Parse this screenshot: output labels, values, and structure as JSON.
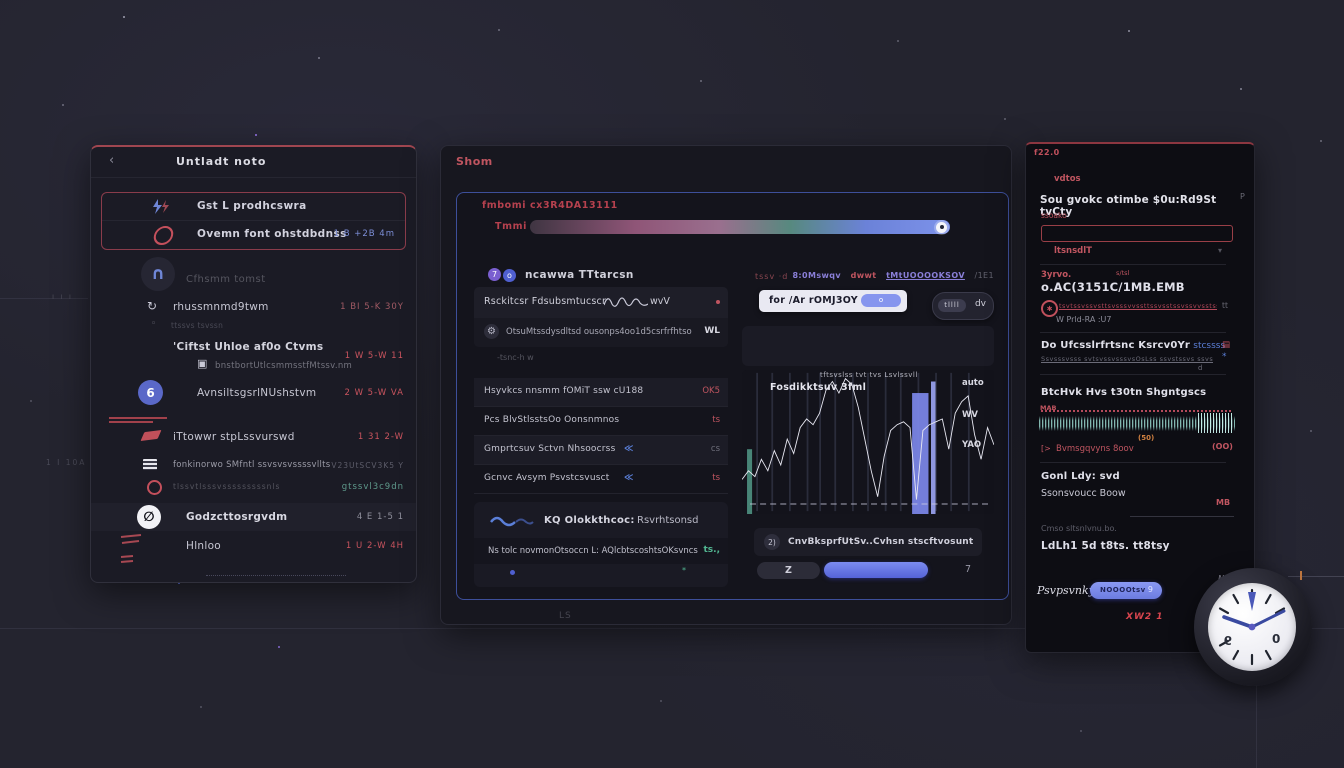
{
  "icons": {
    "back": "‹",
    "refresh": "↻",
    "headphones": "∩",
    "grid": "▣",
    "gear": "⚙",
    "slash": "∅",
    "chevron_down": "▾",
    "double_angle": "≪"
  },
  "left_panel": {
    "header": {
      "title": "Untladt noto"
    },
    "pinned": [
      {
        "label": "Gst L prodhcswra"
      },
      {
        "label": "Ovemn font ohstdbdnss",
        "time": "1 B +2B 4m"
      }
    ],
    "profile_label": "Cfhsmm tomst",
    "items": [
      {
        "label": "rhussmnmd9twm",
        "time": "1 BI 5-K 30Y"
      },
      {
        "label": "ttssvs tsvssn",
        "time": ""
      },
      {
        "label": "'Ciftst Uhloe af0o Ctvms",
        "sub": "bnstbortUtlcsmmsstfMtssv.nm",
        "time": "1 W 5-W 11"
      },
      {
        "label": "AvnsiltsgsrlNUshstvm",
        "time": "2 W 5-W VA",
        "badge": "6"
      },
      {
        "label": "iTtowwr stpLssvurswd",
        "time": "1 31 2-W"
      },
      {
        "label": "fonkinorwo SMfntl ssvsvsvssssvllts",
        "time": "V23UtSCV3K5 Y"
      },
      {
        "label": "tlssvtlsssvsssssssssnls",
        "time": "gtssvl3c9dn"
      },
      {
        "label": "Godzcttosrgvdm",
        "time": "4 E 1-5 1"
      },
      {
        "label": "Hlnloo",
        "time": "1 U 2-W 4H"
      }
    ]
  },
  "middle_panel": {
    "title": "Shom",
    "section_label": "fmbomi cx3R4DA13111",
    "slider_label": "Tmmi",
    "left": {
      "dot1": "7",
      "dot2": "o",
      "header": "ncawwa TTtarcsn",
      "card_row1": "Rsckitcsr Fdsubsmtucscr",
      "card_row1_suffix": "wvV",
      "card_row2": "OtsuMtssdysdltsd ousonps4oo1d5csrfrfhtso",
      "card_row2_value": "WL",
      "note": "-tsnc-h w",
      "rows": [
        {
          "label": "Hsyvkcs nnsmm fOMiT ssw cU188",
          "mid": "",
          "value": "OK5"
        },
        {
          "label": "Pcs BlvStlsstsOo Oonsnmnos",
          "mid": "",
          "value": "ts"
        },
        {
          "label": "Gmprtcsuv Sctvn Nhsoocrss",
          "mid": "≪",
          "value": "cs"
        },
        {
          "label": "Gcnvc Avsym Psvstcsvusct",
          "mid": "≪",
          "value": "ts"
        }
      ],
      "footer": {
        "brand": "KQ Olokkthcoc:",
        "brand_right": "Rsvrhtsonsd",
        "line": "Ns tolc novmonOtsoccn L: AQlcbtscoshtsOKsvncs",
        "line_right": "ts.,",
        "line_star": "*"
      }
    },
    "right": {
      "tag_left": "tssv ·d",
      "tags": [
        "8:0Mswqv",
        "dwwt",
        "tMtUOOOOKSOV",
        "/1E1"
      ],
      "card_label": "for /Ar rOMJ3OY",
      "card_pill": "o",
      "toggle_left": "tllll",
      "toggle_right": "dv",
      "footer_icon": "2)",
      "footer_label": "CnvBksprfUtSv..Cvhsn stscftvosunt",
      "pill_label": "Z",
      "value_right": "7"
    },
    "footer_note": "LS"
  },
  "chart_data": {
    "type": "line",
    "title_scribble": "tftsvslss tvt tvs Lsvlssvll",
    "left_label": "Fosdikktsuv 3fml",
    "right_labels": [
      "auto",
      "WV",
      "YAO"
    ],
    "x_range": [
      0,
      100
    ],
    "y_range": [
      0,
      100
    ],
    "grid": true,
    "legend_position": "none",
    "line_values": [
      76,
      70,
      74,
      62,
      70,
      56,
      66,
      48,
      58,
      40,
      34,
      38,
      30,
      14,
      8,
      16,
      6,
      10,
      26,
      48,
      70,
      88,
      60,
      42,
      38,
      36,
      40,
      90,
      42,
      38,
      36,
      34,
      55,
      30,
      22,
      18,
      45,
      62,
      40,
      52
    ],
    "gridline_x": [
      6,
      12,
      19,
      26,
      31,
      37,
      44,
      50,
      57,
      63,
      70,
      77,
      83,
      90
    ],
    "bars": [
      {
        "x": 2,
        "w": 2,
        "top": 55,
        "color": "#4d8f7f"
      },
      {
        "x": 67.5,
        "w": 6.5,
        "top": 16,
        "color": "#7d88ea"
      },
      {
        "x": 75,
        "w": 1.8,
        "top": 8,
        "color": "#9aa3f0"
      }
    ]
  },
  "right_panel": {
    "corner": "f22.0",
    "side_p": "P",
    "s1": {
      "label": "vdtos",
      "heading": "Sou gvokc otimbe $0u:Rd9St tvCty",
      "sub": "ssoako",
      "input_value": "",
      "under": "ltsnsdlT",
      "caret": "▾"
    },
    "s2": {
      "label": "3yrvo.",
      "mini": "s/tsl",
      "title": "o.AC(3151C/1MB.EMB",
      "line": "tsvtssvssvsttsvsssvvssttssvsstssvssvvsstssvsstsv",
      "right": "tt",
      "sub": "W Prld-RA :U7",
      "ring": "✱"
    },
    "s3": {
      "title": "Do Ufcsslrfrtsnc Ksrcv0Yr",
      "link": "stcssss",
      "corner": "▤",
      "line": "Ssvsssvsss svtsvssvsssvsOsLss ssvstssvs ssvss s PSOOst",
      "star": "*",
      "mini": "d"
    },
    "s4": {
      "title": "BtcHvk Hvs t30tn Shgntgscs",
      "wave_label": "MAB",
      "badge": "(50)",
      "row": "Bvmsgqvyns 8oov",
      "row_prefix": "[>",
      "row_right": "(OO)"
    },
    "s5": {
      "title": "Gonl Ldy: svd",
      "sub": "Ssonsvoucc Boow",
      "right": "MB"
    },
    "s6": {
      "dim": "Cmso sltsnlvnu.bo.",
      "title": "LdLh1 5d t8ts. tt8tsy"
    },
    "property": {
      "label": "Psvpsvnky",
      "button": "NOOOOtsv",
      "knob": "9",
      "side": "N"
    },
    "footer_red": "XW2 1",
    "clock": {
      "label": "N0",
      "numeral_left": "9",
      "numeral_right": "0"
    }
  },
  "decor": {
    "left_dots": "ı ı ı",
    "left_row_mark": "1 I 10A"
  }
}
